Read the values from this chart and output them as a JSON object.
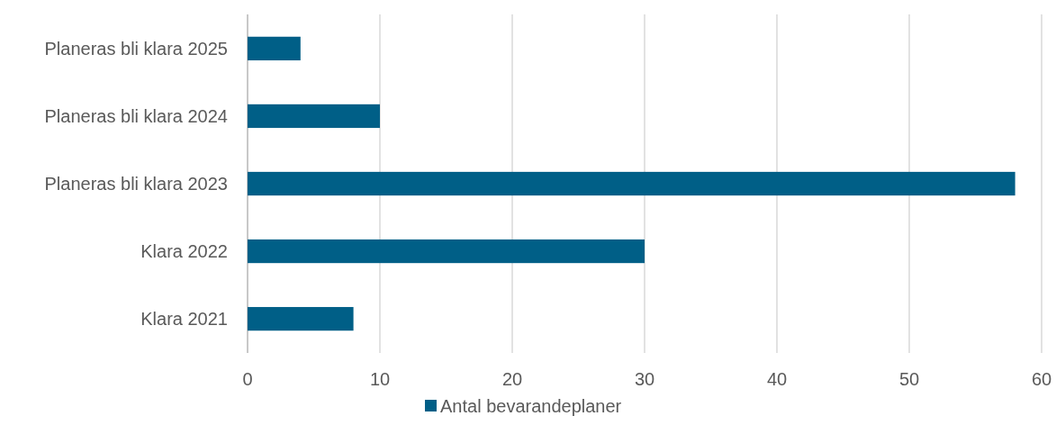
{
  "chart_data": {
    "type": "bar",
    "orientation": "horizontal",
    "categories": [
      "Planeras bli klara 2025",
      "Planeras bli klara 2024",
      "Planeras bli klara 2023",
      "Klara 2022",
      "Klara 2021"
    ],
    "series": [
      {
        "name": "Antal bevarandeplaner",
        "color": "#005f87",
        "values": [
          4,
          10,
          58,
          30,
          8
        ]
      }
    ],
    "xlim": [
      0,
      60
    ],
    "xticks": [
      0,
      10,
      20,
      30,
      40,
      50,
      60
    ],
    "grid": "x",
    "legend": "bottom"
  }
}
